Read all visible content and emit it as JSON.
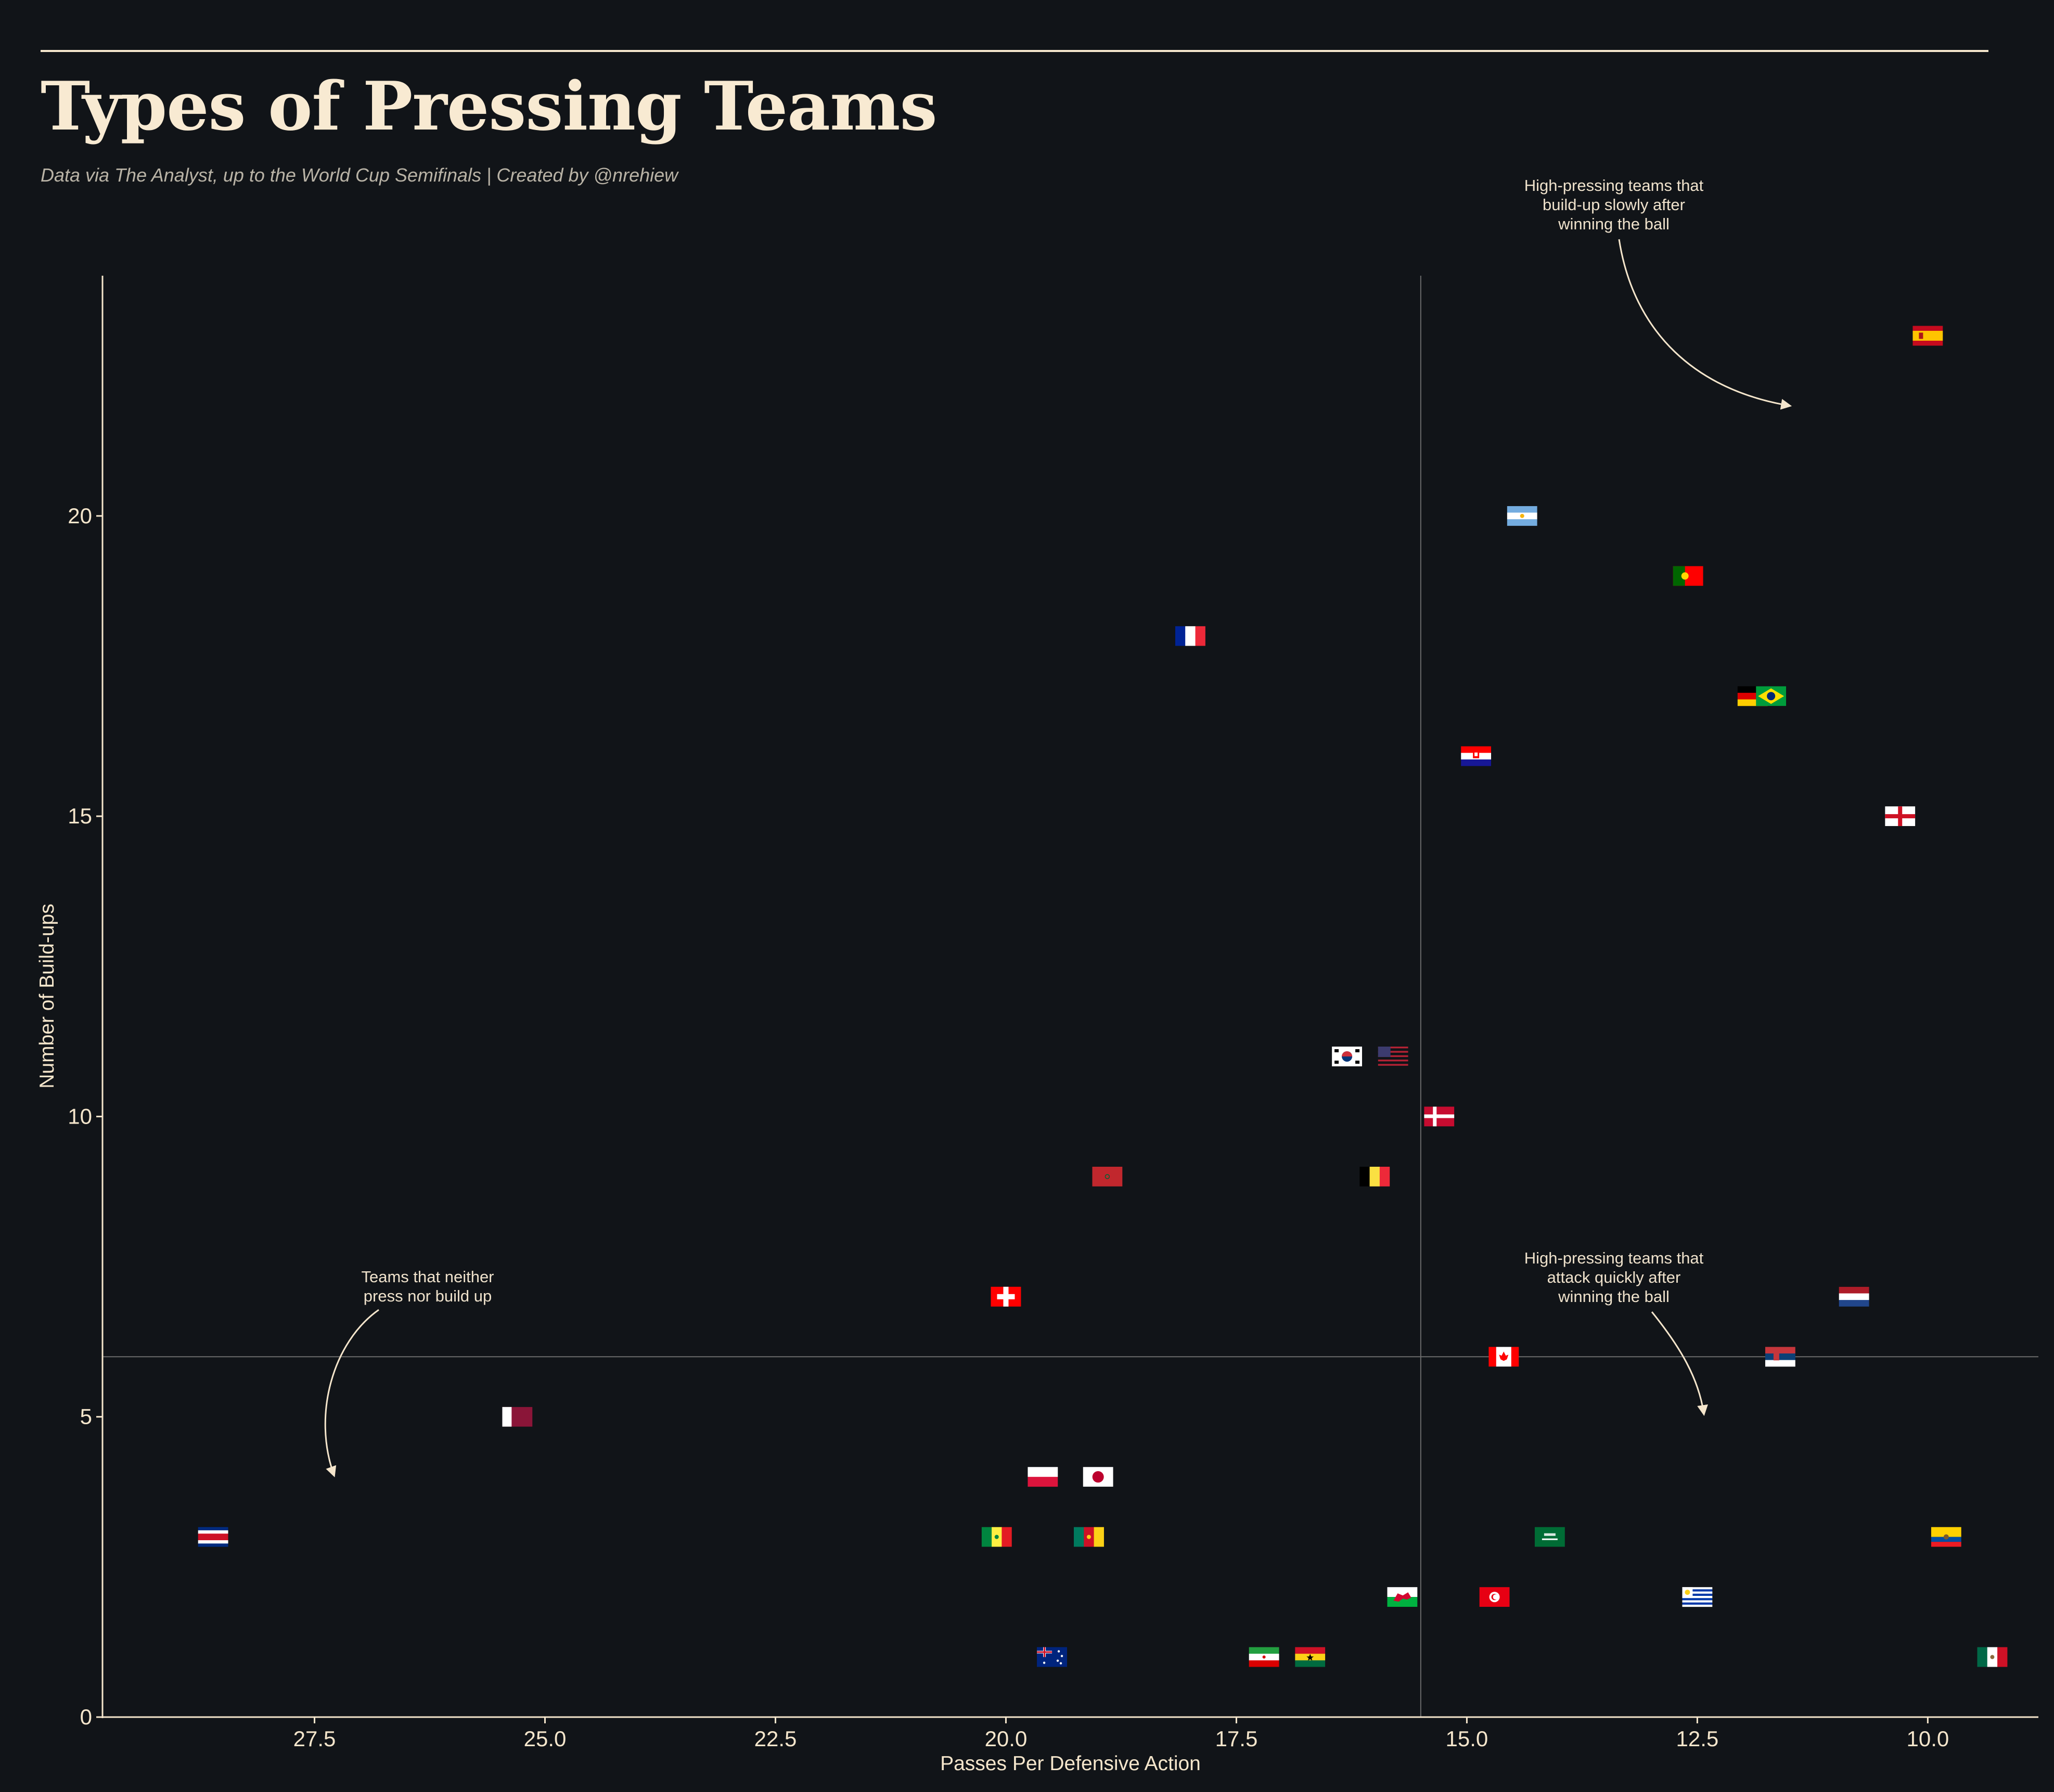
{
  "header": {
    "title": "Types of Pressing Teams",
    "subtitle": "Data via The Analyst, up to the World Cup Semifinals  |  Created by @nrehiew"
  },
  "annotations": {
    "top_right": [
      "High-pressing teams that",
      "build-up slowly after",
      "winning the ball"
    ],
    "bottom_right": [
      "High-pressing teams that",
      "attack quickly after",
      "winning the ball"
    ],
    "bottom_left": [
      "Teams that neither",
      "press nor build up"
    ]
  },
  "colors": {
    "background": "#111418",
    "text": "#f5e6cc",
    "reference_line": "#6b6b6b"
  },
  "chart_data": {
    "type": "scatter",
    "title": "Types of Pressing Teams",
    "xlabel": "Passes Per Defensive Action",
    "ylabel": "Number of Build-ups",
    "xlim": [
      29.8,
      8.8
    ],
    "ylim": [
      0,
      24
    ],
    "x_inverted": true,
    "xticks": [
      "27.5",
      "25.0",
      "22.5",
      "20.0",
      "17.5",
      "15.0",
      "12.5",
      "10.0"
    ],
    "xtick_values": [
      27.5,
      25.0,
      22.5,
      20.0,
      17.5,
      15.0,
      12.5,
      10.0
    ],
    "yticks": [
      "0",
      "5",
      "10",
      "15",
      "20"
    ],
    "ytick_values": [
      0,
      5,
      10,
      15,
      20
    ],
    "grid": false,
    "reference_lines": {
      "x": 15.5,
      "y": 6
    },
    "marker": "country flag",
    "points": [
      {
        "team": "Spain",
        "flag": "spain",
        "x": 10.0,
        "y": 23
      },
      {
        "team": "Argentina",
        "flag": "argentina",
        "x": 14.4,
        "y": 20
      },
      {
        "team": "Portugal",
        "flag": "portugal",
        "x": 12.6,
        "y": 19
      },
      {
        "team": "France",
        "flag": "france",
        "x": 18.0,
        "y": 18
      },
      {
        "team": "Germany",
        "flag": "germany",
        "x": 11.9,
        "y": 17
      },
      {
        "team": "Brazil",
        "flag": "brazil",
        "x": 11.7,
        "y": 17
      },
      {
        "team": "Croatia",
        "flag": "croatia",
        "x": 14.9,
        "y": 16
      },
      {
        "team": "England",
        "flag": "england",
        "x": 10.3,
        "y": 15
      },
      {
        "team": "South Korea",
        "flag": "korea",
        "x": 16.3,
        "y": 11
      },
      {
        "team": "United States",
        "flag": "usa",
        "x": 15.8,
        "y": 11
      },
      {
        "team": "Denmark",
        "flag": "denmark",
        "x": 15.3,
        "y": 10
      },
      {
        "team": "Morocco",
        "flag": "morocco",
        "x": 18.9,
        "y": 9
      },
      {
        "team": "Belgium",
        "flag": "belgium",
        "x": 16.0,
        "y": 9
      },
      {
        "team": "Switzerland",
        "flag": "switzerland",
        "x": 20.0,
        "y": 7
      },
      {
        "team": "Netherlands",
        "flag": "netherlands",
        "x": 10.8,
        "y": 7
      },
      {
        "team": "Canada",
        "flag": "canada",
        "x": 14.6,
        "y": 6
      },
      {
        "team": "Serbia",
        "flag": "serbia",
        "x": 11.6,
        "y": 6
      },
      {
        "team": "Qatar",
        "flag": "qatar",
        "x": 25.3,
        "y": 5
      },
      {
        "team": "Poland",
        "flag": "poland",
        "x": 19.6,
        "y": 4
      },
      {
        "team": "Japan",
        "flag": "japan",
        "x": 19.0,
        "y": 4
      },
      {
        "team": "Costa Rica",
        "flag": "costarica",
        "x": 28.6,
        "y": 3
      },
      {
        "team": "Senegal",
        "flag": "senegal",
        "x": 20.1,
        "y": 3
      },
      {
        "team": "Cameroon",
        "flag": "cameroon",
        "x": 19.1,
        "y": 3
      },
      {
        "team": "Saudi Arabia",
        "flag": "saudi",
        "x": 14.1,
        "y": 3
      },
      {
        "team": "Ecuador",
        "flag": "ecuador",
        "x": 9.8,
        "y": 3
      },
      {
        "team": "Wales",
        "flag": "wales",
        "x": 15.7,
        "y": 2
      },
      {
        "team": "Tunisia",
        "flag": "tunisia",
        "x": 14.7,
        "y": 2
      },
      {
        "team": "Uruguay",
        "flag": "uruguay",
        "x": 12.5,
        "y": 2
      },
      {
        "team": "Australia",
        "flag": "australia",
        "x": 19.5,
        "y": 1
      },
      {
        "team": "Iran",
        "flag": "iran",
        "x": 17.2,
        "y": 1
      },
      {
        "team": "Ghana",
        "flag": "ghana",
        "x": 16.7,
        "y": 1
      },
      {
        "team": "Mexico",
        "flag": "mexico",
        "x": 9.3,
        "y": 1
      }
    ]
  }
}
